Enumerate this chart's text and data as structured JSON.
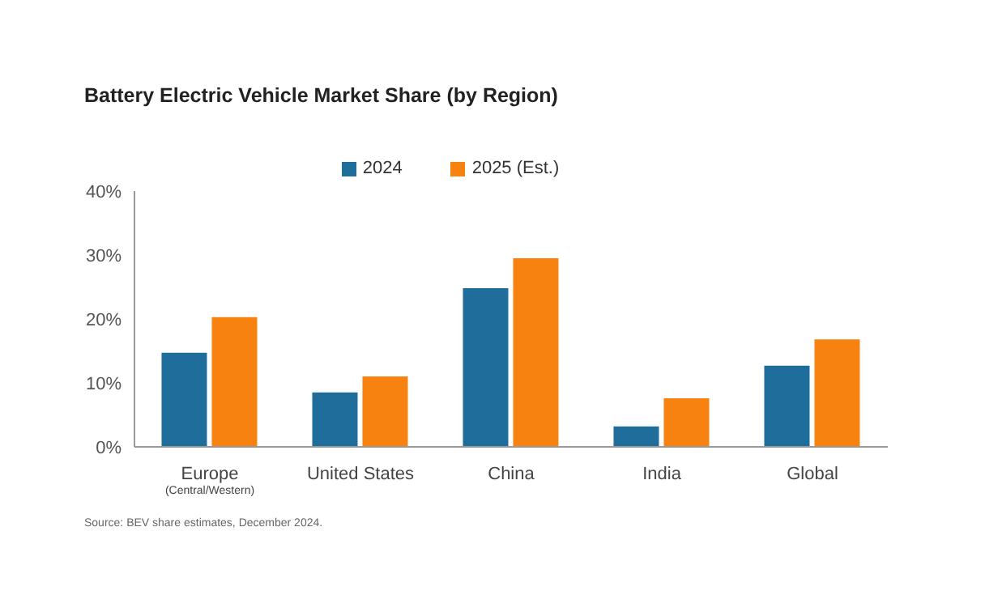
{
  "chart_data": {
    "type": "bar",
    "title": "Battery Electric Vehicle Market Share (by Region)",
    "categories": [
      "Europe\n(Central/Western)",
      "United States",
      "China",
      "India",
      "Global"
    ],
    "series": [
      {
        "name": "2024",
        "color": "#1f6d9b",
        "values": [
          14.7,
          8.5,
          24.8,
          3.2,
          12.7
        ]
      },
      {
        "name": "2025 (Est.)",
        "color": "#f7820f",
        "values": [
          20.3,
          11,
          29.5,
          7.6,
          16.8
        ]
      }
    ],
    "ylim": [
      0,
      40
    ],
    "yticks": [
      {
        "value": 0,
        "label": "0%"
      },
      {
        "value": 10,
        "label": "10%"
      },
      {
        "value": 20,
        "label": "20%"
      },
      {
        "value": 30,
        "label": "30%"
      },
      {
        "value": 40,
        "label": "40%"
      }
    ],
    "grid": false,
    "legend": "top",
    "annotations": [
      "Source: BEV share estimates, December 2024."
    ]
  }
}
